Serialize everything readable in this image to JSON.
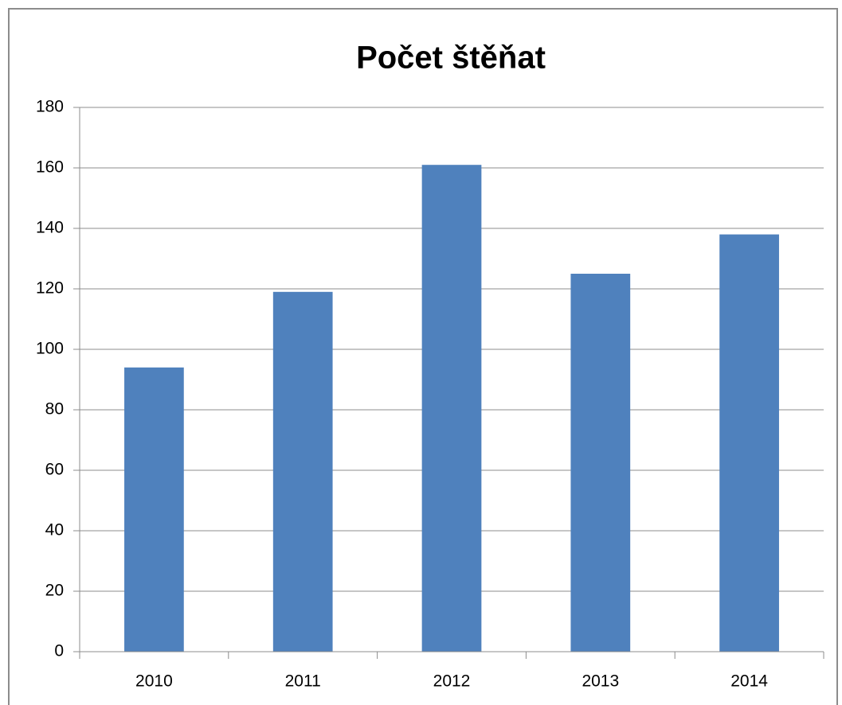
{
  "chart_data": {
    "type": "bar",
    "title": "Počet štěňat",
    "categories": [
      "2010",
      "2011",
      "2012",
      "2013",
      "2014"
    ],
    "values": [
      94,
      119,
      161,
      125,
      138
    ],
    "color": "#4f81bd",
    "ylim": [
      0,
      180
    ],
    "yticks": [
      0,
      20,
      40,
      60,
      80,
      100,
      120,
      140,
      160,
      180
    ],
    "grid": true
  }
}
